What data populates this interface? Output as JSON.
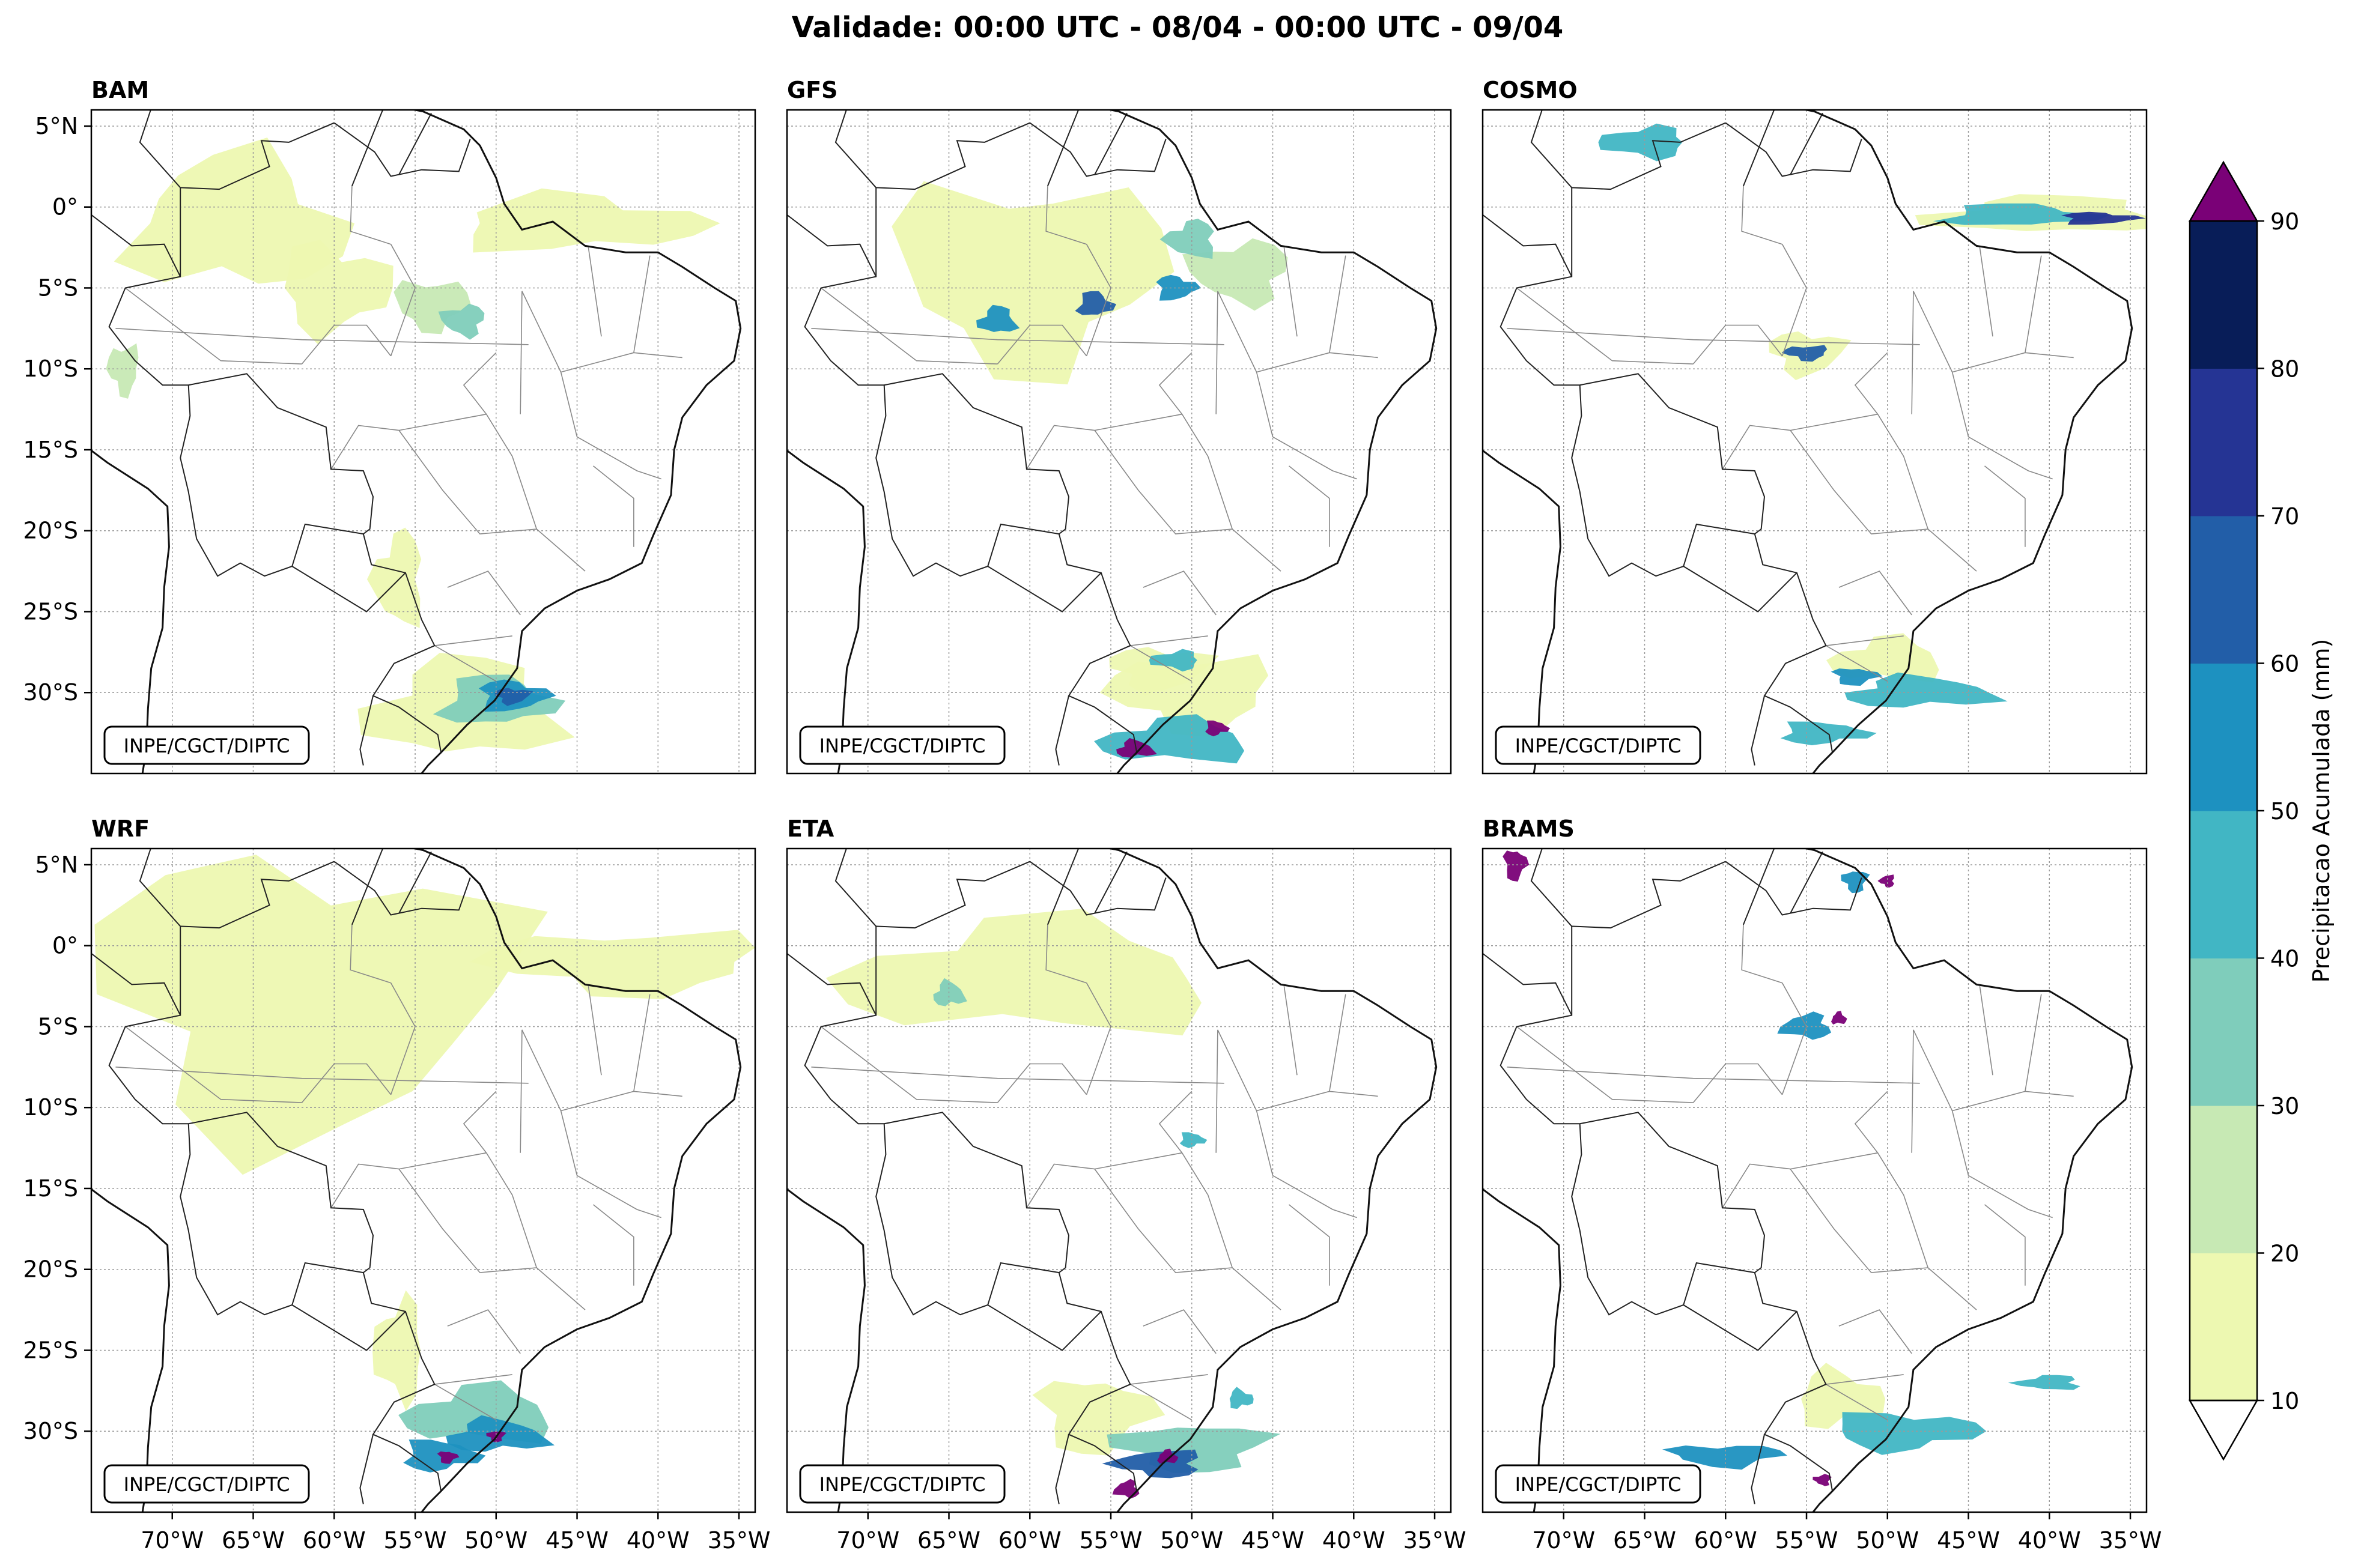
{
  "figure": {
    "title": "Validade: 00:00 UTC - 08/04 - 00:00 UTC - 09/04",
    "credit": "INPE/CGCT/DIPTC",
    "lat_ticks": [
      "5°N",
      "0°",
      "5°S",
      "10°S",
      "15°S",
      "20°S",
      "25°S",
      "30°S"
    ],
    "lon_ticks": [
      "70°W",
      "65°W",
      "60°W",
      "55°W",
      "50°W",
      "45°W",
      "40°W",
      "35°W"
    ],
    "extent": {
      "lon_min": -75,
      "lon_max": -34,
      "lat_min": -35,
      "lat_max": 6
    }
  },
  "panels": [
    {
      "name": "BAM"
    },
    {
      "name": "GFS"
    },
    {
      "name": "COSMO"
    },
    {
      "name": "WRF"
    },
    {
      "name": "ETA"
    },
    {
      "name": "BRAMS"
    }
  ],
  "colorbar": {
    "label": "Precipitacao Acumulada (mm)",
    "levels": [
      "10",
      "20",
      "30",
      "40",
      "50",
      "60",
      "70",
      "80",
      "90"
    ],
    "colors": [
      "#edf8b1",
      "#c7e9b4",
      "#7fcdbb",
      "#41b6c4",
      "#1d91c0",
      "#225ea8",
      "#253494",
      "#081d58"
    ],
    "over_color": "#7a0177",
    "under_color": "#ffffff"
  }
}
